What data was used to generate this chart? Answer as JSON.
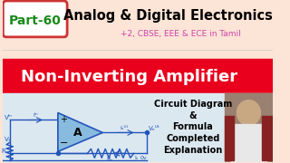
{
  "bg_top_color": "#fce4d6",
  "bg_red_color": "#e8001c",
  "bg_bottom_color": "#dce8f0",
  "part_text": "Part-60",
  "part_text_color": "#1a8a1a",
  "part_box_edge": "#cc3333",
  "title_main": "Analog & Digital Electronics",
  "title_main_color": "#000000",
  "subtitle": "+2, CBSE, EEE & ECE in Tamil",
  "subtitle_color": "#cc44aa",
  "banner_text": "Non-Inverting Amplifier",
  "banner_text_color": "#ffffff",
  "right_text_lines": [
    "Circuit Diagram",
    "&",
    "Formula",
    "Completed",
    "Explanation"
  ],
  "right_text_color": "#000000",
  "circuit_line_color": "#2255bb",
  "op_amp_fill": "#88bbdd",
  "op_amp_label": "A"
}
